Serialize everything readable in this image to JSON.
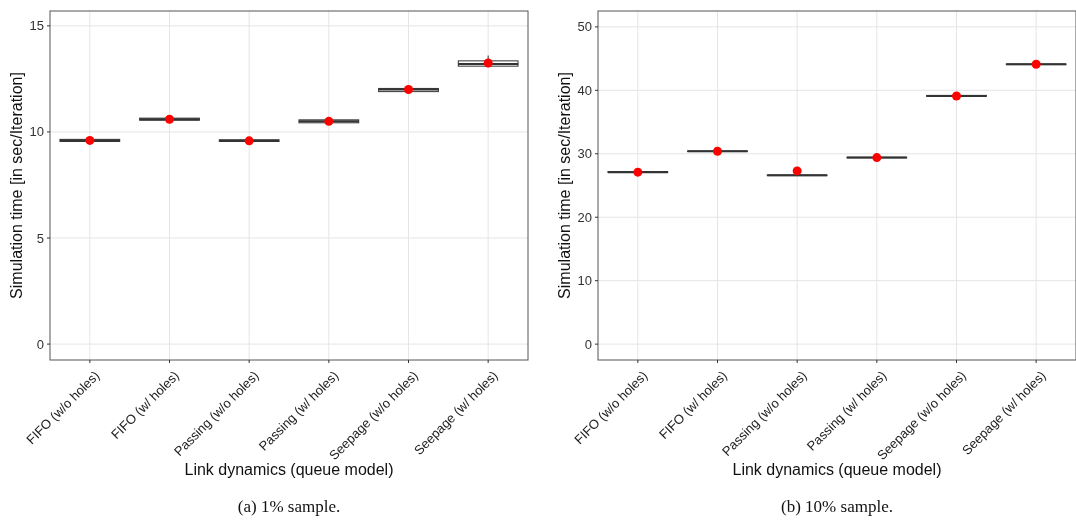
{
  "chart_data": [
    {
      "type": "box",
      "xlabel": "Link dynamics (queue model)",
      "ylabel": "Simulation time [in sec/Iteration]",
      "categories": [
        "FIFO (w/o holes)",
        "FIFO (w/ holes)",
        "Passing (w/o holes)",
        "Passing (w/ holes)",
        "Seepage (w/o holes)",
        "Seepage (w/ holes)"
      ],
      "boxes": [
        {
          "low": 9.5,
          "q1": 9.55,
          "median": 9.6,
          "q3": 9.65,
          "high": 9.7
        },
        {
          "low": 10.5,
          "q1": 10.55,
          "median": 10.6,
          "q3": 10.65,
          "high": 10.7
        },
        {
          "low": 9.5,
          "q1": 9.55,
          "median": 9.58,
          "q3": 9.63,
          "high": 9.68
        },
        {
          "low": 10.4,
          "q1": 10.43,
          "median": 10.5,
          "q3": 10.57,
          "high": 10.6
        },
        {
          "low": 11.85,
          "q1": 11.9,
          "median": 12.0,
          "q3": 12.05,
          "high": 12.15
        },
        {
          "low": 13.05,
          "q1": 13.1,
          "median": 13.2,
          "q3": 13.35,
          "high": 13.6
        }
      ],
      "color": "#333333",
      "series": [
        {
          "type": "scatter",
          "color": "#ff0000",
          "x": [
            "FIFO (w/o holes)",
            "FIFO (w/ holes)",
            "Passing (w/o holes)",
            "Passing (w/ holes)",
            "Seepage (w/o holes)",
            "Seepage (w/ holes)"
          ],
          "values": [
            9.6,
            10.6,
            9.58,
            10.5,
            12.0,
            13.25
          ]
        }
      ],
      "ylim": [
        -0.75,
        15.7
      ],
      "yticks": [
        0,
        5,
        10,
        15
      ],
      "grid": true,
      "annotations": [
        "(a)  1% sample."
      ]
    },
    {
      "type": "box",
      "xlabel": "Link dynamics (queue model)",
      "ylabel": "Simulation time [in sec/Iteration]",
      "categories": [
        "FIFO (w/o holes)",
        "FIFO (w/ holes)",
        "Passing (w/o holes)",
        "Passing (w/ holes)",
        "Seepage (w/o holes)",
        "Seepage (w/ holes)"
      ],
      "boxes": [
        {
          "low": 27.0,
          "q1": 27.05,
          "median": 27.1,
          "q3": 27.2,
          "high": 27.3
        },
        {
          "low": 30.3,
          "q1": 30.35,
          "median": 30.4,
          "q3": 30.45,
          "high": 30.5
        },
        {
          "low": 26.5,
          "q1": 26.55,
          "median": 26.6,
          "q3": 26.65,
          "high": 26.7
        },
        {
          "low": 29.3,
          "q1": 29.35,
          "median": 29.4,
          "q3": 29.45,
          "high": 29.5
        },
        {
          "low": 39.0,
          "q1": 39.05,
          "median": 39.1,
          "q3": 39.2,
          "high": 39.3
        },
        {
          "low": 44.0,
          "q1": 44.05,
          "median": 44.1,
          "q3": 44.15,
          "high": 44.2
        }
      ],
      "color": "#333333",
      "series": [
        {
          "type": "scatter",
          "color": "#ff0000",
          "x": [
            "FIFO (w/o holes)",
            "FIFO (w/ holes)",
            "Passing (w/o holes)",
            "Passing (w/ holes)",
            "Seepage (w/o holes)",
            "Seepage (w/ holes)"
          ],
          "values": [
            27.1,
            30.4,
            27.3,
            29.4,
            39.1,
            44.1
          ]
        }
      ],
      "ylim": [
        -2.5,
        52.5
      ],
      "yticks": [
        0,
        10,
        20,
        30,
        40,
        50
      ],
      "grid": true,
      "annotations": [
        "(b)  10% sample."
      ]
    }
  ]
}
